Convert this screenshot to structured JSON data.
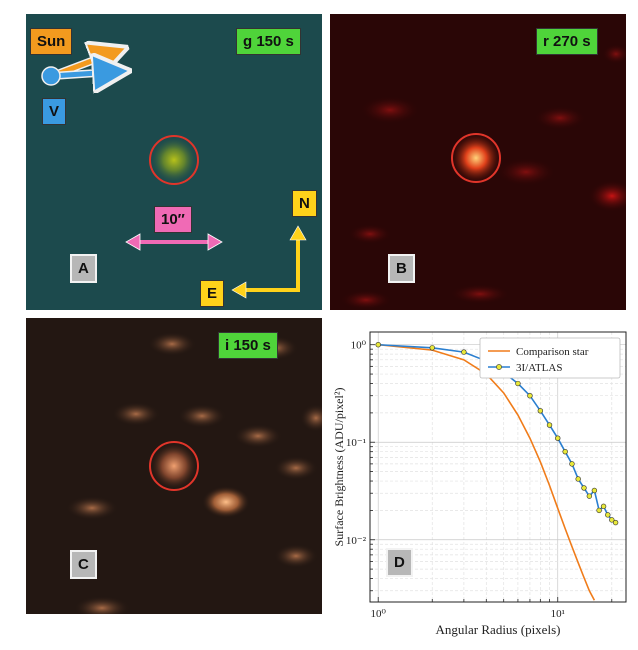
{
  "panels": {
    "a": {
      "filter_label": "g 150 s",
      "panel_letter": "A",
      "sun_label": "Sun",
      "v_label": "V",
      "scale_label": "10″",
      "north_label": "N",
      "east_label": "E"
    },
    "b": {
      "filter_label": "r 270 s",
      "panel_letter": "B"
    },
    "c": {
      "filter_label": "i 150 s",
      "panel_letter": "C"
    },
    "d": {
      "panel_letter": "D"
    }
  },
  "chart_data": {
    "type": "line",
    "xscale": "log",
    "yscale": "log",
    "xlabel": "Angular Radius (pixels)",
    "ylabel": "Surface Brightness (ADU/pixel²)",
    "xlim": [
      0.9,
      24
    ],
    "ylim": [
      0.0023,
      1.35
    ],
    "xtick_labels": [
      "10⁰",
      "10¹"
    ],
    "ytick_labels": [
      "10⁰",
      "10⁻¹",
      "10⁻²"
    ],
    "grid": true,
    "legend": "top-right",
    "series": [
      {
        "name": "Comparison star",
        "color": "#f07c1a",
        "x": [
          1,
          2,
          3,
          4,
          5,
          6,
          7,
          8,
          9,
          10,
          11,
          12,
          13,
          14,
          15,
          16
        ],
        "y": [
          1.0,
          0.88,
          0.7,
          0.5,
          0.32,
          0.19,
          0.11,
          0.063,
          0.036,
          0.021,
          0.013,
          0.0085,
          0.0058,
          0.0041,
          0.003,
          0.0024
        ]
      },
      {
        "name": "3I/ATLAS",
        "color": "#2a7fd0",
        "marker_color": "#e8e83a",
        "x": [
          1,
          2,
          3,
          4,
          5,
          6,
          7,
          8,
          9,
          10,
          11,
          12,
          13,
          14,
          15,
          16,
          17,
          18,
          19,
          20,
          21
        ],
        "y": [
          1.0,
          0.93,
          0.84,
          0.68,
          0.52,
          0.4,
          0.3,
          0.21,
          0.15,
          0.11,
          0.08,
          0.06,
          0.042,
          0.034,
          0.028,
          0.032,
          0.02,
          0.022,
          0.018,
          0.016,
          0.015
        ]
      }
    ]
  }
}
